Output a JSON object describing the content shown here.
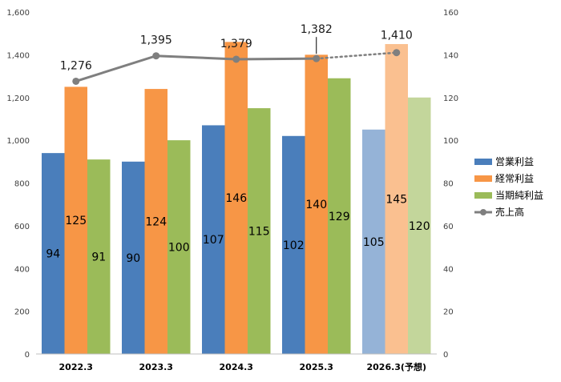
{
  "chart_data": {
    "type": "bar",
    "categories": [
      "2022.3",
      "2023.3",
      "2024.3",
      "2025.3",
      "2026.3(予想)"
    ],
    "forecast_index": 4,
    "series": [
      {
        "name": "営業利益",
        "type": "bar",
        "axis": "right",
        "values": [
          94,
          90,
          107,
          102,
          105
        ],
        "color": "#4a7ebb",
        "forecast_color": "#95b3d7"
      },
      {
        "name": "経常利益",
        "type": "bar",
        "axis": "right",
        "values": [
          125,
          124,
          146,
          140,
          145
        ],
        "color": "#f79646",
        "forecast_color": "#fac090"
      },
      {
        "name": "当期純利益",
        "type": "bar",
        "axis": "right",
        "values": [
          91,
          100,
          115,
          129,
          120
        ],
        "color": "#9bbb59",
        "forecast_color": "#c3d69b"
      },
      {
        "name": "売上高",
        "type": "line",
        "axis": "left",
        "values": [
          1276,
          1395,
          1379,
          1382,
          1410
        ],
        "value_labels": [
          "1,276",
          "1,395",
          "1,379",
          "1,382",
          "1,410"
        ],
        "color": "#7f7f7f"
      }
    ],
    "left_axis": {
      "min": 0,
      "max": 1600,
      "step": 200,
      "tick_labels": [
        "0",
        "200",
        "400",
        "600",
        "800",
        "1,000",
        "1,200",
        "1,400",
        "1,600"
      ]
    },
    "right_axis": {
      "min": 0,
      "max": 160,
      "step": 20,
      "tick_labels": [
        "0",
        "20",
        "40",
        "60",
        "80",
        "100",
        "120",
        "140",
        "160"
      ]
    },
    "legend_position": "right",
    "grid": false
  }
}
